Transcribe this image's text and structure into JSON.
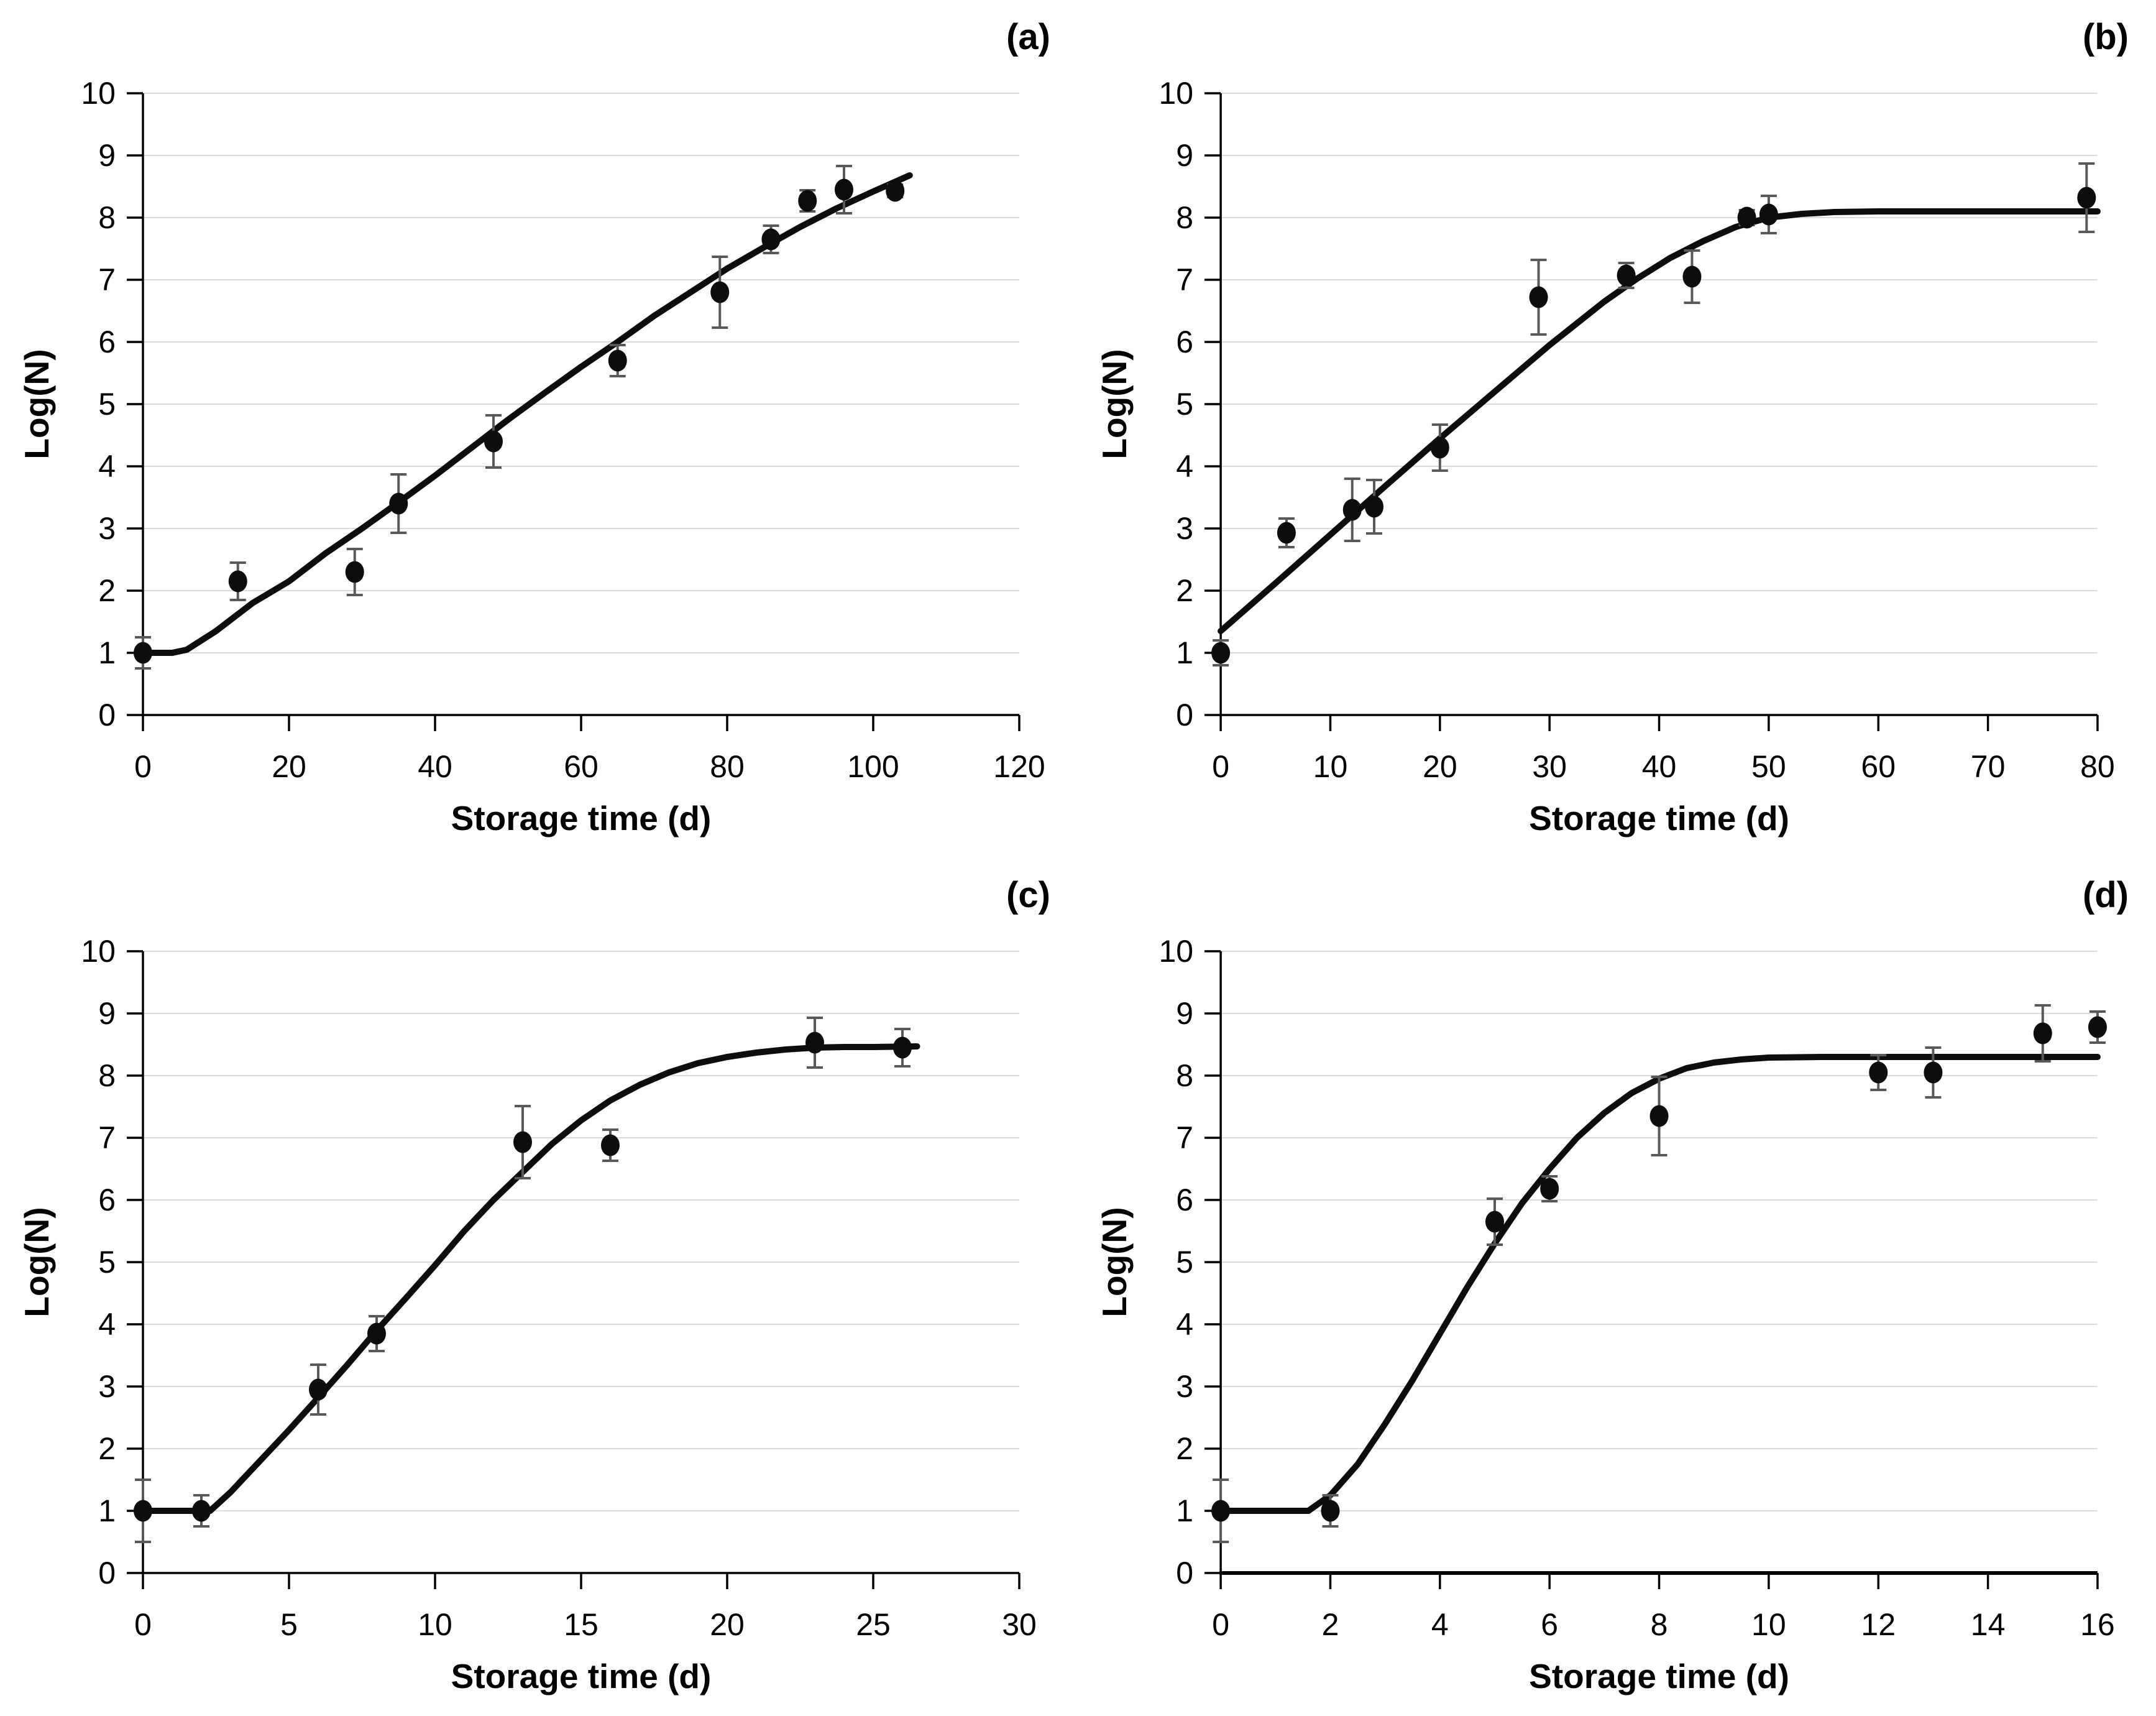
{
  "figure": {
    "background": "#ffffff",
    "text_color": "#000000",
    "grid_color": "#dcdcdc",
    "axis_color": "#000000",
    "errorbar_color": "#595959",
    "point_color": "#0d0d0d",
    "curve_color": "#0d0d0d"
  },
  "chart_data": [
    {
      "type": "scatter",
      "panel_label": "(a)",
      "xlabel": "Storage time (d)",
      "ylabel": "Log(N)",
      "xlim": [
        0,
        120
      ],
      "ylim": [
        0,
        10
      ],
      "xticks": [
        0,
        20,
        40,
        60,
        80,
        100,
        120
      ],
      "yticks": [
        0,
        1,
        2,
        3,
        4,
        5,
        6,
        7,
        8,
        9,
        10
      ],
      "grid": "horizontal",
      "legend": "none",
      "axis_weight": 3.5,
      "points": [
        {
          "x": 0,
          "y": 1.0,
          "err": 0.25
        },
        {
          "x": 13,
          "y": 2.15,
          "err": 0.3
        },
        {
          "x": 29,
          "y": 2.3,
          "err": 0.37
        },
        {
          "x": 35,
          "y": 3.4,
          "err": 0.47
        },
        {
          "x": 48,
          "y": 4.4,
          "err": 0.42
        },
        {
          "x": 65,
          "y": 5.7,
          "err": 0.25
        },
        {
          "x": 79,
          "y": 6.8,
          "err": 0.57
        },
        {
          "x": 86,
          "y": 7.65,
          "err": 0.22
        },
        {
          "x": 91,
          "y": 8.27,
          "err": 0.17
        },
        {
          "x": 96,
          "y": 8.45,
          "err": 0.38
        },
        {
          "x": 103,
          "y": 8.43,
          "err": 0.1
        }
      ],
      "curve": [
        [
          0,
          1.0
        ],
        [
          4,
          1.0
        ],
        [
          6,
          1.05
        ],
        [
          10,
          1.35
        ],
        [
          15,
          1.8
        ],
        [
          20,
          2.15
        ],
        [
          25,
          2.6
        ],
        [
          30,
          3.0
        ],
        [
          35,
          3.42
        ],
        [
          40,
          3.85
        ],
        [
          45,
          4.3
        ],
        [
          50,
          4.75
        ],
        [
          55,
          5.18
        ],
        [
          60,
          5.6
        ],
        [
          65,
          6.0
        ],
        [
          70,
          6.42
        ],
        [
          75,
          6.8
        ],
        [
          80,
          7.18
        ],
        [
          85,
          7.52
        ],
        [
          90,
          7.85
        ],
        [
          95,
          8.15
        ],
        [
          100,
          8.42
        ],
        [
          105,
          8.68
        ]
      ]
    },
    {
      "type": "scatter",
      "panel_label": "(b)",
      "xlabel": "Storage time (d)",
      "ylabel": "Log(N)",
      "xlim": [
        0,
        80
      ],
      "ylim": [
        0,
        10
      ],
      "xticks": [
        0,
        10,
        20,
        30,
        40,
        50,
        60,
        70,
        80
      ],
      "yticks": [
        0,
        1,
        2,
        3,
        4,
        5,
        6,
        7,
        8,
        9,
        10
      ],
      "grid": "horizontal",
      "legend": "none",
      "axis_weight": 3.5,
      "points": [
        {
          "x": 0,
          "y": 1.0,
          "err": 0.2
        },
        {
          "x": 6,
          "y": 2.93,
          "err": 0.23
        },
        {
          "x": 12,
          "y": 3.3,
          "err": 0.5
        },
        {
          "x": 14,
          "y": 3.35,
          "err": 0.43
        },
        {
          "x": 20,
          "y": 4.3,
          "err": 0.37
        },
        {
          "x": 29,
          "y": 6.72,
          "err": 0.6
        },
        {
          "x": 37,
          "y": 7.07,
          "err": 0.2
        },
        {
          "x": 43,
          "y": 7.05,
          "err": 0.42
        },
        {
          "x": 48,
          "y": 8.0,
          "err": 0.12
        },
        {
          "x": 50,
          "y": 8.05,
          "err": 0.3
        },
        {
          "x": 79,
          "y": 8.32,
          "err": 0.55
        }
      ],
      "curve": [
        [
          0,
          1.35
        ],
        [
          5,
          2.12
        ],
        [
          10,
          2.9
        ],
        [
          15,
          3.68
        ],
        [
          20,
          4.45
        ],
        [
          25,
          5.2
        ],
        [
          30,
          5.95
        ],
        [
          35,
          6.65
        ],
        [
          38,
          7.02
        ],
        [
          41,
          7.35
        ],
        [
          44,
          7.62
        ],
        [
          47,
          7.85
        ],
        [
          50,
          8.0
        ],
        [
          53,
          8.06
        ],
        [
          56,
          8.09
        ],
        [
          60,
          8.1
        ],
        [
          70,
          8.1
        ],
        [
          80,
          8.1
        ]
      ]
    },
    {
      "type": "scatter",
      "panel_label": "(c)",
      "xlabel": "Storage time (d)",
      "ylabel": "Log(N)",
      "xlim": [
        0,
        30
      ],
      "ylim": [
        0,
        10
      ],
      "xticks": [
        0,
        5,
        10,
        15,
        20,
        25,
        30
      ],
      "yticks": [
        0,
        1,
        2,
        3,
        4,
        5,
        6,
        7,
        8,
        9,
        10
      ],
      "grid": "horizontal",
      "legend": "none",
      "axis_weight": 3.5,
      "points": [
        {
          "x": 0,
          "y": 1.0,
          "err": 0.5
        },
        {
          "x": 2,
          "y": 1.0,
          "err": 0.25
        },
        {
          "x": 6,
          "y": 2.95,
          "err": 0.4
        },
        {
          "x": 8,
          "y": 3.85,
          "err": 0.28
        },
        {
          "x": 13,
          "y": 6.93,
          "err": 0.58
        },
        {
          "x": 16,
          "y": 6.88,
          "err": 0.25
        },
        {
          "x": 23,
          "y": 8.53,
          "err": 0.4
        },
        {
          "x": 26,
          "y": 8.45,
          "err": 0.3
        }
      ],
      "curve": [
        [
          0,
          1.0
        ],
        [
          2.3,
          1.0
        ],
        [
          3,
          1.3
        ],
        [
          4,
          1.8
        ],
        [
          5,
          2.3
        ],
        [
          6,
          2.82
        ],
        [
          7,
          3.35
        ],
        [
          8,
          3.9
        ],
        [
          9,
          4.42
        ],
        [
          10,
          4.95
        ],
        [
          11,
          5.5
        ],
        [
          12,
          6.0
        ],
        [
          13,
          6.45
        ],
        [
          14,
          6.9
        ],
        [
          15,
          7.28
        ],
        [
          16,
          7.6
        ],
        [
          17,
          7.85
        ],
        [
          18,
          8.05
        ],
        [
          19,
          8.2
        ],
        [
          20,
          8.3
        ],
        [
          21,
          8.37
        ],
        [
          22,
          8.42
        ],
        [
          23,
          8.45
        ],
        [
          24,
          8.46
        ],
        [
          25,
          8.46
        ],
        [
          26.5,
          8.47
        ]
      ]
    },
    {
      "type": "scatter",
      "panel_label": "(d)",
      "xlabel": "Storage time (d)",
      "ylabel": "Log(N)",
      "xlim": [
        0,
        16
      ],
      "ylim": [
        0,
        10
      ],
      "xticks": [
        0,
        2,
        4,
        6,
        8,
        10,
        12,
        14,
        16
      ],
      "yticks": [
        0,
        1,
        2,
        3,
        4,
        5,
        6,
        7,
        8,
        9,
        10
      ],
      "grid": "horizontal",
      "legend": "none",
      "axis_weight": 6,
      "points": [
        {
          "x": 0,
          "y": 1.0,
          "err": 0.5
        },
        {
          "x": 2,
          "y": 1.0,
          "err": 0.25
        },
        {
          "x": 5,
          "y": 5.65,
          "err": 0.37
        },
        {
          "x": 6,
          "y": 6.18,
          "err": 0.2
        },
        {
          "x": 8,
          "y": 7.35,
          "err": 0.63
        },
        {
          "x": 12,
          "y": 8.05,
          "err": 0.28
        },
        {
          "x": 13,
          "y": 8.05,
          "err": 0.4
        },
        {
          "x": 15,
          "y": 8.68,
          "err": 0.45
        },
        {
          "x": 16,
          "y": 8.78,
          "err": 0.25
        }
      ],
      "curve": [
        [
          0,
          1.0
        ],
        [
          1.6,
          1.0
        ],
        [
          2,
          1.25
        ],
        [
          2.5,
          1.75
        ],
        [
          3,
          2.4
        ],
        [
          3.5,
          3.1
        ],
        [
          4,
          3.85
        ],
        [
          4.5,
          4.6
        ],
        [
          5,
          5.3
        ],
        [
          5.5,
          5.95
        ],
        [
          6,
          6.5
        ],
        [
          6.5,
          7.0
        ],
        [
          7,
          7.4
        ],
        [
          7.5,
          7.72
        ],
        [
          8,
          7.95
        ],
        [
          8.5,
          8.12
        ],
        [
          9,
          8.21
        ],
        [
          9.5,
          8.26
        ],
        [
          10,
          8.29
        ],
        [
          11,
          8.3
        ],
        [
          13,
          8.3
        ],
        [
          16,
          8.3
        ]
      ]
    }
  ]
}
